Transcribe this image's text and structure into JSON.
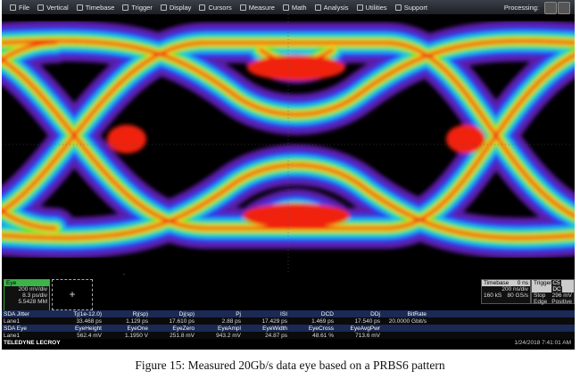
{
  "menu": {
    "items": [
      "File",
      "Vertical",
      "Timebase",
      "Trigger",
      "Display",
      "Cursors",
      "Measure",
      "Math",
      "Analysis",
      "Utilities",
      "Support"
    ],
    "processing": "Processing:"
  },
  "eye_panel": {
    "label": "Eye",
    "vdiv": "200 mV/div",
    "hdiv": "8.3 ps/div",
    "count": "5.5428 MM"
  },
  "timebase": {
    "label": "Timebase",
    "delay": "0 ns",
    "tdiv": "200 ns/div",
    "samples": "160 kS",
    "rate": "80 GS/s"
  },
  "trigger": {
    "label": "Trigger",
    "source": "C5",
    "coupling": "DC",
    "mode": "Stop",
    "level": "296 mV",
    "type": "Edge",
    "slope": "Positive"
  },
  "jitter_table": {
    "headers": [
      "SDA Jitter",
      "Tj(1e-12.0)",
      "Rj(sp)",
      "Dj(sp)",
      "Pj",
      "ISI",
      "DCD",
      "DDj",
      "BitRate"
    ],
    "rows": [
      [
        "Lane1",
        "33.468 ps",
        "1.129 ps",
        "17.610 ps",
        "2.88 ps",
        "17.429 ps",
        "1.469 ps",
        "17.540 ps",
        "20.0000 Gbit/s"
      ]
    ]
  },
  "eye_table": {
    "headers": [
      "SDA Eye",
      "EyeHeight",
      "EyeOne",
      "EyeZero",
      "EyeAmpl",
      "EyeWidth",
      "EyeCross",
      "EyeAvgPwr"
    ],
    "rows": [
      [
        "Lane1",
        "562.4 mV",
        "1.1950 V",
        "251.8 mV",
        "943.2 mV",
        "24.87 ps",
        "48.61 %",
        "713.6 mV"
      ]
    ]
  },
  "footer": {
    "brand": "TELEDYNE LECROY",
    "timestamp": "1/24/2018 7:41:01 AM"
  },
  "caption": "Figure 15: Measured 20Gb/s data eye based on a PRBS6 pattern"
}
